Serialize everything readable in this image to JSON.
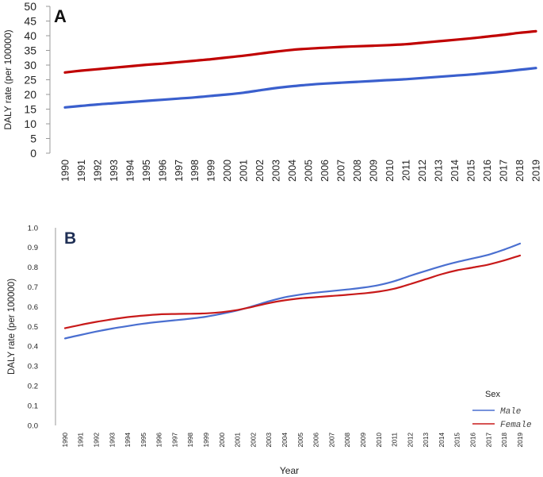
{
  "chart_data": [
    {
      "type": "line",
      "panel_label": "A",
      "title": "",
      "xlabel": "",
      "ylabel": "DALY rate (per 100000)",
      "ylim": [
        0,
        50
      ],
      "yticks": [
        0,
        5,
        10,
        15,
        20,
        25,
        30,
        35,
        40,
        45,
        50
      ],
      "categories": [
        "1990",
        "1991",
        "1992",
        "1993",
        "1994",
        "1995",
        "1996",
        "1997",
        "1998",
        "1999",
        "2000",
        "2001",
        "2002",
        "2003",
        "2004",
        "2005",
        "2006",
        "2007",
        "2008",
        "2009",
        "2010",
        "2011",
        "2012",
        "2013",
        "2014",
        "2015",
        "2016",
        "2017",
        "2018",
        "2019"
      ],
      "series": [
        {
          "name": "Female",
          "color": "#c00000",
          "values": [
            27.5,
            28.1,
            28.6,
            29.1,
            29.6,
            30.1,
            30.5,
            31.0,
            31.5,
            32.0,
            32.6,
            33.2,
            33.9,
            34.6,
            35.2,
            35.6,
            35.9,
            36.2,
            36.4,
            36.6,
            36.8,
            37.1,
            37.6,
            38.1,
            38.6,
            39.1,
            39.7,
            40.3,
            41.0,
            41.5
          ]
        },
        {
          "name": "Male",
          "color": "#3a5fcd",
          "values": [
            15.6,
            16.1,
            16.6,
            17.0,
            17.4,
            17.8,
            18.2,
            18.6,
            19.0,
            19.5,
            20.0,
            20.6,
            21.4,
            22.2,
            22.8,
            23.3,
            23.7,
            24.0,
            24.3,
            24.6,
            24.9,
            25.2,
            25.6,
            26.0,
            26.4,
            26.8,
            27.3,
            27.8,
            28.4,
            29.0
          ]
        }
      ]
    },
    {
      "type": "line",
      "panel_label": "B",
      "title": "",
      "xlabel": "Year",
      "ylabel": "DALY rate (per 100000)",
      "ylim": [
        0,
        1.0
      ],
      "yticks": [
        "0.0",
        "0.1",
        "0.2",
        "0.3",
        "0.4",
        "0.5",
        "0.6",
        "0.7",
        "0.8",
        "0.9",
        "1.0"
      ],
      "categories": [
        "1990",
        "1991",
        "1992",
        "1993",
        "1994",
        "1995",
        "1996",
        "1997",
        "1998",
        "1999",
        "2000",
        "2001",
        "2002",
        "2003",
        "2004",
        "2005",
        "2006",
        "2007",
        "2008",
        "2009",
        "2010",
        "2011",
        "2012",
        "2013",
        "2014",
        "2015",
        "2016",
        "2017",
        "2018",
        "2019"
      ],
      "legend": {
        "title": "Sex",
        "position": "bottom-right"
      },
      "series": [
        {
          "name": "Male",
          "color": "#4a6fd0",
          "values": [
            0.44,
            0.458,
            0.475,
            0.49,
            0.503,
            0.515,
            0.524,
            0.532,
            0.54,
            0.55,
            0.565,
            0.582,
            0.604,
            0.628,
            0.648,
            0.662,
            0.672,
            0.68,
            0.688,
            0.697,
            0.71,
            0.73,
            0.757,
            0.782,
            0.806,
            0.827,
            0.845,
            0.864,
            0.89,
            0.92
          ]
        },
        {
          "name": "Female",
          "color": "#c81a1a",
          "values": [
            0.492,
            0.509,
            0.524,
            0.537,
            0.548,
            0.556,
            0.562,
            0.564,
            0.565,
            0.567,
            0.573,
            0.584,
            0.601,
            0.619,
            0.633,
            0.643,
            0.649,
            0.655,
            0.661,
            0.668,
            0.677,
            0.692,
            0.715,
            0.74,
            0.765,
            0.785,
            0.799,
            0.814,
            0.835,
            0.86
          ]
        }
      ]
    }
  ]
}
